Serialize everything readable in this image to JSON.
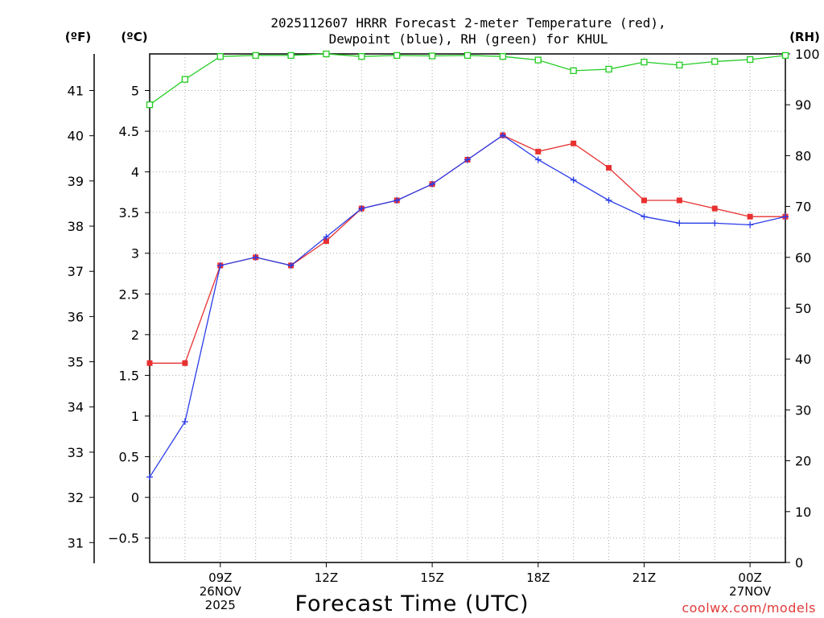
{
  "chart_data": {
    "type": "line",
    "title": "2025112607 HRRR Forecast 2-meter Temperature (red),",
    "title_line2": "Dewpoint (blue), RH (green) for KHUL",
    "xlabel": "Forecast Time (UTC)",
    "unit_labels": {
      "fahrenheit": "(ºF)",
      "celsius": "(ºC)",
      "rh": "(RH)"
    },
    "credit": "coolwx.com/models",
    "x_hours": [
      7,
      8,
      9,
      10,
      11,
      12,
      13,
      14,
      15,
      16,
      17,
      18,
      19,
      20,
      21,
      22,
      23,
      24,
      25
    ],
    "xlim": [
      7,
      25
    ],
    "x_ticks": [
      {
        "x": 9,
        "lines": [
          "09Z",
          "26NOV",
          "2025"
        ]
      },
      {
        "x": 12,
        "lines": [
          "12Z"
        ]
      },
      {
        "x": 15,
        "lines": [
          "15Z"
        ]
      },
      {
        "x": 18,
        "lines": [
          "18Z"
        ]
      },
      {
        "x": 21,
        "lines": [
          "21Z"
        ]
      },
      {
        "x": 24,
        "lines": [
          "00Z",
          "27NOV"
        ]
      }
    ],
    "celsius_axis": {
      "ylim": [
        -0.8,
        5.45
      ],
      "ticks": [
        "-0.5",
        "0",
        "0.5",
        "1",
        "1.5",
        "2",
        "2.5",
        "3",
        "3.5",
        "4",
        "4.5",
        "5"
      ]
    },
    "fahrenheit_axis": {
      "ticks": [
        "31",
        "32",
        "33",
        "34",
        "35",
        "36",
        "37",
        "38",
        "39",
        "40",
        "41"
      ]
    },
    "rh_axis": {
      "ylim": [
        0,
        100
      ],
      "ticks": [
        "0",
        "10",
        "20",
        "30",
        "40",
        "50",
        "60",
        "70",
        "80",
        "90",
        "100"
      ]
    },
    "series": [
      {
        "name": "Temperature",
        "color": "#e83030",
        "axis": "celsius",
        "values": [
          1.65,
          1.65,
          2.85,
          2.95,
          2.85,
          3.15,
          3.55,
          3.65,
          3.85,
          4.15,
          4.45,
          4.25,
          4.35,
          4.05,
          3.65,
          3.65,
          3.55,
          3.45,
          3.45
        ]
      },
      {
        "name": "Dewpoint",
        "color": "#2a3ce8",
        "axis": "celsius",
        "values": [
          0.25,
          0.93,
          2.85,
          2.95,
          2.85,
          3.2,
          3.55,
          3.65,
          3.85,
          4.15,
          4.45,
          4.15,
          3.9,
          3.65,
          3.45,
          3.37,
          3.37,
          3.35,
          3.45
        ]
      },
      {
        "name": "RH",
        "color": "#22cc22",
        "axis": "rh",
        "values": [
          90.0,
          95.0,
          99.5,
          99.7,
          99.7,
          100.0,
          99.5,
          99.7,
          99.6,
          99.7,
          99.5,
          98.8,
          96.7,
          97.0,
          98.4,
          97.8,
          98.5,
          98.9,
          99.7
        ]
      }
    ]
  }
}
